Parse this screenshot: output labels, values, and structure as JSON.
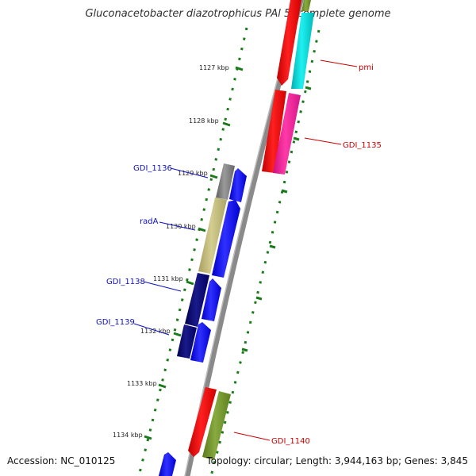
{
  "title": "Gluconacetobacter diazotrophicus PAl 5, complete genome",
  "footer": {
    "accession": "Accession: NC_010125",
    "topology": "Topology: circular; Length: 3,944,163 bp; Genes: 3,845"
  },
  "ticks": [
    "1127 kbp",
    "1128 kbp",
    "1129 kbp",
    "1130 kbp",
    "1131 kbp",
    "1132 kbp",
    "1133 kbp",
    "1134 kbp"
  ],
  "gene_labels": {
    "forward": [
      "GDI_1136",
      "radA",
      "GDI_1138",
      "GDI_1139"
    ],
    "reverse": [
      "pmi",
      "GDI_1135",
      "GDI_1140"
    ]
  },
  "colors": {
    "label_forward": "#1010c0",
    "label_reverse": "#cc0000",
    "tick": "#1a7a1a",
    "backbone": "#8a8a8a"
  }
}
